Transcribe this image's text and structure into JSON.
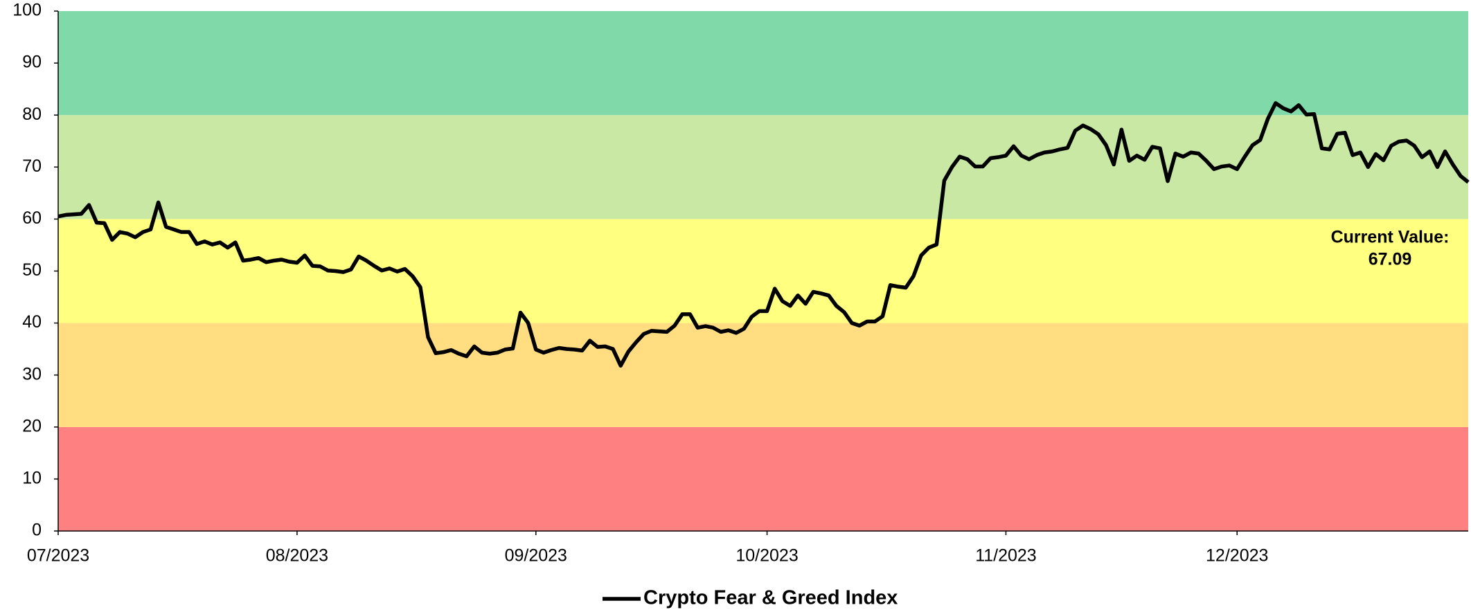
{
  "chart_data": {
    "type": "line",
    "legend": "bottom",
    "bands": [
      {
        "from": 0,
        "to": 20,
        "color": "#ff8080"
      },
      {
        "from": 20,
        "to": 40,
        "color": "#ffdd80"
      },
      {
        "from": 40,
        "to": 60,
        "color": "#ffff80"
      },
      {
        "from": 60,
        "to": 80,
        "color": "#c8e8a4"
      },
      {
        "from": 80,
        "to": 100,
        "color": "#80d9a9"
      }
    ],
    "annotation": {
      "label": "Current Value:",
      "value": 67.09
    },
    "xlim": [
      0,
      183
    ],
    "xticks": [
      {
        "value": 0,
        "label": "07/2023"
      },
      {
        "value": 31,
        "label": "08/2023"
      },
      {
        "value": 62,
        "label": "09/2023"
      },
      {
        "value": 92,
        "label": "10/2023"
      },
      {
        "value": 123,
        "label": "11/2023"
      },
      {
        "value": 153,
        "label": "12/2023"
      }
    ],
    "ylim": [
      0,
      100
    ],
    "yticks": [
      0,
      10,
      20,
      30,
      40,
      50,
      60,
      70,
      80,
      90,
      100
    ],
    "x": [
      0,
      1,
      2,
      3,
      4,
      5,
      6,
      7,
      8,
      9,
      10,
      11,
      12,
      13,
      14,
      15,
      16,
      17,
      18,
      19,
      20,
      21,
      22,
      23,
      24,
      25,
      26,
      27,
      28,
      29,
      30,
      31,
      32,
      33,
      34,
      35,
      36,
      37,
      38,
      39,
      40,
      41,
      42,
      43,
      44,
      45,
      46,
      47,
      48,
      49,
      50,
      51,
      52,
      53,
      54,
      55,
      56,
      57,
      58,
      59,
      60,
      61,
      62,
      63,
      64,
      65,
      66,
      67,
      68,
      69,
      70,
      71,
      72,
      73,
      74,
      75,
      76,
      77,
      78,
      79,
      80,
      81,
      82,
      83,
      84,
      85,
      86,
      87,
      88,
      89,
      90,
      91,
      92,
      93,
      94,
      95,
      96,
      97,
      98,
      99,
      100,
      101,
      102,
      103,
      104,
      105,
      106,
      107,
      108,
      109,
      110,
      111,
      112,
      113,
      114,
      115,
      116,
      117,
      118,
      119,
      120,
      121,
      122,
      123,
      124,
      125,
      126,
      127,
      128,
      129,
      130,
      131,
      132,
      133,
      134,
      135,
      136,
      137,
      138,
      139,
      140,
      141,
      142,
      143,
      144,
      145,
      146,
      147,
      148,
      149,
      150,
      151,
      152,
      153,
      154,
      155,
      156,
      157,
      158,
      159,
      160,
      161,
      162,
      163,
      164,
      165,
      166,
      167,
      168,
      169,
      170,
      171,
      172,
      173,
      174,
      175,
      176,
      177,
      178,
      179,
      180,
      181,
      182,
      183
    ],
    "series": [
      {
        "name": "Crypto Fear & Greed Index",
        "color": "#000000",
        "values": [
          60.5,
          60.8,
          60.9,
          61,
          62.7,
          59.3,
          59.2,
          56,
          57.5,
          57.2,
          56.5,
          57.5,
          58,
          63.2,
          58.5,
          58,
          57.5,
          57.5,
          55.2,
          55.7,
          55.1,
          55.5,
          54.5,
          55.5,
          52,
          52.2,
          52.5,
          51.7,
          52,
          52.2,
          51.8,
          51.6,
          53,
          51,
          50.9,
          50.1,
          50,
          49.8,
          50.3,
          52.8,
          52,
          51,
          50.1,
          50.5,
          49.9,
          50.4,
          49,
          46.9,
          37.3,
          34.2,
          34.4,
          34.8,
          34.1,
          33.6,
          35.5,
          34.3,
          34.1,
          34.3,
          34.9,
          35.1,
          42,
          40,
          34.9,
          34.3,
          34.8,
          35.2,
          35,
          34.9,
          34.7,
          36.6,
          35.4,
          35.5,
          35,
          31.8,
          34.5,
          36.3,
          37.9,
          38.5,
          38.4,
          38.3,
          39.5,
          41.7,
          41.7,
          39.1,
          39.4,
          39.1,
          38.3,
          38.6,
          38.1,
          38.9,
          41.2,
          42.3,
          42.3,
          46.6,
          44.2,
          43.3,
          45.3,
          43.7,
          46,
          45.7,
          45.3,
          43.3,
          42.1,
          40,
          39.5,
          40.3,
          40.3,
          41.3,
          47.3,
          47,
          46.8,
          49,
          53,
          54.5,
          55.1,
          67.4,
          70,
          72,
          71.5,
          70.1,
          70.1,
          71.7,
          71.9,
          72.2,
          74,
          72.2,
          71.5,
          72.3,
          72.8,
          73,
          73.4,
          73.7,
          77,
          78,
          77.3,
          76.3,
          74.2,
          70.5,
          77.2,
          71.2,
          72.2,
          71.4,
          73.9,
          73.6,
          67.3,
          72.6,
          72,
          72.8,
          72.6,
          71.2,
          69.6,
          70.1,
          70.3,
          69.6,
          72,
          74.2,
          75.2,
          79.3,
          82.3,
          81.3,
          80.7,
          81.9,
          80.1,
          80.2,
          73.6,
          73.4,
          76.4,
          76.6,
          72.3,
          72.8,
          70,
          72.5,
          71.3,
          74.1,
          74.9,
          75.1,
          74.1,
          71.9,
          73,
          70,
          73,
          70.5,
          68.3,
          67.09
        ]
      }
    ]
  }
}
